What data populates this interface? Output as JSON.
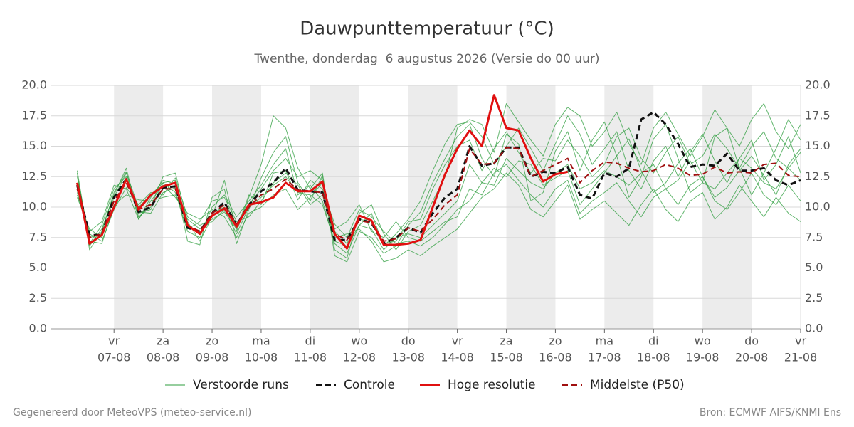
{
  "chart_data": {
    "type": "line",
    "title": "Dauwpunttemperatuur (°C)",
    "subtitle": "Twenthe, donderdag  6 augustus 2026 (Versie do 00 uur)",
    "footer_left": "Gegenereerd door MeteoVPS (meteo-service.nl)",
    "footer_right": "Bron: ECMWF AIFS/KNMI Ens",
    "xlim": [
      5.72,
      21
    ],
    "ylim": [
      0,
      20
    ],
    "yticks": [
      {
        "value": 0,
        "label": "0.0"
      },
      {
        "value": 2.5,
        "label": "2.5"
      },
      {
        "value": 5,
        "label": "5.0"
      },
      {
        "value": 7.5,
        "label": "7.5"
      },
      {
        "value": 10,
        "label": "10.0"
      },
      {
        "value": 12.5,
        "label": "12.5"
      },
      {
        "value": 15,
        "label": "15.0"
      },
      {
        "value": 17.5,
        "label": "17.5"
      },
      {
        "value": 20,
        "label": "20.0"
      }
    ],
    "xticks": [
      {
        "value": 7,
        "label": "07-08",
        "weekday": "vr"
      },
      {
        "value": 8,
        "label": "08-08",
        "weekday": "za"
      },
      {
        "value": 9,
        "label": "09-08",
        "weekday": "zo"
      },
      {
        "value": 10,
        "label": "10-08",
        "weekday": "ma"
      },
      {
        "value": 11,
        "label": "11-08",
        "weekday": "di"
      },
      {
        "value": 12,
        "label": "12-08",
        "weekday": "wo"
      },
      {
        "value": 13,
        "label": "13-08",
        "weekday": "do"
      },
      {
        "value": 14,
        "label": "14-08",
        "weekday": "vr"
      },
      {
        "value": 15,
        "label": "15-08",
        "weekday": "za"
      },
      {
        "value": 16,
        "label": "16-08",
        "weekday": "zo"
      },
      {
        "value": 17,
        "label": "17-08",
        "weekday": "ma"
      },
      {
        "value": 18,
        "label": "18-08",
        "weekday": "di"
      },
      {
        "value": 19,
        "label": "19-08",
        "weekday": "wo"
      },
      {
        "value": 20,
        "label": "20-08",
        "weekday": "do"
      },
      {
        "value": 21,
        "label": "21-08",
        "weekday": "vr"
      }
    ],
    "grid": true,
    "legend": "bottom",
    "x": [
      6.25,
      6.5,
      6.75,
      7,
      7.25,
      7.5,
      7.75,
      8,
      8.25,
      8.5,
      8.75,
      9,
      9.25,
      9.5,
      9.75,
      10,
      10.25,
      10.5,
      10.75,
      11,
      11.25,
      11.5,
      11.75,
      12,
      12.25,
      12.5,
      12.75,
      13,
      13.25,
      13.5,
      13.75,
      14,
      14.25,
      14.5,
      14.75,
      15,
      15.25,
      15.5,
      15.75,
      16,
      16.25,
      16.5,
      16.75,
      17,
      17.25,
      17.5,
      17.75,
      18,
      18.25,
      18.5,
      18.75,
      19,
      19.25,
      19.5,
      19.75,
      20,
      20.25,
      20.5,
      20.75,
      21
    ],
    "ensemble": {
      "name": "Verstoorde runs",
      "color": "#2e9e3e",
      "members": [
        [
          12.8,
          6.5,
          8.0,
          11.2,
          12.9,
          9.0,
          10.8,
          12.2,
          11.9,
          7.2,
          6.9,
          10.8,
          11.5,
          7.0,
          9.8,
          12.4,
          14.5,
          15.8,
          12.0,
          10.5,
          12.6,
          6.0,
          5.5,
          8.0,
          7.5,
          6.2,
          6.8,
          8.5,
          9.6,
          12.0,
          14.0,
          15.8,
          16.8,
          14.0,
          12.5,
          16.0,
          15.2,
          10.5,
          11.2,
          14.6,
          16.2,
          13.0,
          15.5,
          17.0,
          14.2,
          10.8,
          12.5,
          15.6,
          16.8,
          14.0,
          11.2,
          12.0,
          15.8,
          16.5,
          13.2,
          11.0,
          12.8,
          14.8,
          17.2,
          15.5
        ],
        [
          11.2,
          7.8,
          7.2,
          9.8,
          11.6,
          10.2,
          11.2,
          11.0,
          12.4,
          9.2,
          8.5,
          9.0,
          9.6,
          8.2,
          11.0,
          10.2,
          12.8,
          13.0,
          10.6,
          12.2,
          11.5,
          8.6,
          7.5,
          9.8,
          9.2,
          8.0,
          7.0,
          7.2,
          6.8,
          7.5,
          8.6,
          9.8,
          10.5,
          12.0,
          13.2,
          12.5,
          13.8,
          13.5,
          11.8,
          12.4,
          13.0,
          10.2,
          11.5,
          12.8,
          14.2,
          15.6,
          13.0,
          11.2,
          12.0,
          13.6,
          14.8,
          12.5,
          10.8,
          11.6,
          13.0,
          14.2,
          12.6,
          11.0,
          13.5,
          14.8
        ],
        [
          12.0,
          7.0,
          8.5,
          11.5,
          12.5,
          9.5,
          9.8,
          12.0,
          11.2,
          8.0,
          7.5,
          10.0,
          11.0,
          9.2,
          10.5,
          11.8,
          13.5,
          14.8,
          11.0,
          11.8,
          10.5,
          7.0,
          6.2,
          8.5,
          9.5,
          6.8,
          7.8,
          9.0,
          10.5,
          13.0,
          15.2,
          16.8,
          17.0,
          15.8,
          13.5,
          15.0,
          16.5,
          14.8,
          13.0,
          15.2,
          17.5,
          16.0,
          13.5,
          14.8,
          16.2,
          13.0,
          11.5,
          13.8,
          15.0,
          12.5,
          14.5,
          16.0,
          13.8,
          12.0,
          14.0,
          15.5,
          12.2,
          13.5,
          15.8,
          12.8
        ],
        [
          10.8,
          8.2,
          7.5,
          10.2,
          11.0,
          10.6,
          10.5,
          11.8,
          10.8,
          9.5,
          9.0,
          9.8,
          9.2,
          7.5,
          9.5,
          10.0,
          11.0,
          11.5,
          9.8,
          10.8,
          12.0,
          8.2,
          8.8,
          10.2,
          8.0,
          7.5,
          8.8,
          7.5,
          7.2,
          8.0,
          8.8,
          9.2,
          11.5,
          11.0,
          12.8,
          13.5,
          12.2,
          11.0,
          10.0,
          11.5,
          12.2,
          9.5,
          10.5,
          11.2,
          12.0,
          10.5,
          9.2,
          10.8,
          11.5,
          10.2,
          11.8,
          12.5,
          10.5,
          9.8,
          11.2,
          12.8,
          11.0,
          10.2,
          11.8,
          10.5
        ],
        [
          13.0,
          6.8,
          8.2,
          11.0,
          13.2,
          9.2,
          10.0,
          12.5,
          12.8,
          8.8,
          7.2,
          9.2,
          12.2,
          8.0,
          10.8,
          13.5,
          17.5,
          16.5,
          13.2,
          11.5,
          12.8,
          6.5,
          5.8,
          9.5,
          10.2,
          7.8,
          6.5,
          8.0,
          8.5,
          10.5,
          12.5,
          16.5,
          17.2,
          16.8,
          14.5,
          18.5,
          17.0,
          15.5,
          14.2,
          16.8,
          18.2,
          17.5,
          15.0,
          16.2,
          17.8,
          15.2,
          13.5,
          16.5,
          17.8,
          16.0,
          14.2,
          15.8,
          18.0,
          16.5,
          15.0,
          17.2,
          18.5,
          16.2,
          14.8,
          16.8
        ],
        [
          11.8,
          7.2,
          7.0,
          10.0,
          12.2,
          9.6,
          9.5,
          11.2,
          11.6,
          8.2,
          8.8,
          10.5,
          10.8,
          8.8,
          9.2,
          10.5,
          12.0,
          12.8,
          11.8,
          10.2,
          11.0,
          7.5,
          7.8,
          8.2,
          7.2,
          5.5,
          5.8,
          6.5,
          6.0,
          6.8,
          7.5,
          8.2,
          9.5,
          10.8,
          11.5,
          12.8,
          11.8,
          9.8,
          9.2,
          10.5,
          11.8,
          9.0,
          9.8,
          10.5,
          9.5,
          8.5,
          10.2,
          11.5,
          9.8,
          8.8,
          10.5,
          11.2,
          9.0,
          10.0,
          11.8,
          10.5,
          9.2,
          10.8,
          9.5,
          8.8
        ],
        [
          12.5,
          7.5,
          7.8,
          10.8,
          12.8,
          10.0,
          11.0,
          12.0,
          12.2,
          8.6,
          7.8,
          9.5,
          10.0,
          8.4,
          10.2,
          11.5,
          13.0,
          14.0,
          12.5,
          13.0,
          12.2,
          8.0,
          7.0,
          9.0,
          8.8,
          7.0,
          7.2,
          8.8,
          9.0,
          11.5,
          13.5,
          15.0,
          15.5,
          13.0,
          14.8,
          16.2,
          14.5,
          12.8,
          14.0,
          13.8,
          15.5,
          14.2,
          12.5,
          13.5,
          15.8,
          16.5,
          14.0,
          12.8,
          14.5,
          15.8,
          13.5,
          14.2,
          16.0,
          14.8,
          13.2,
          15.0,
          16.2,
          14.0,
          13.2,
          14.5
        ],
        [
          11.0,
          8.0,
          8.8,
          11.8,
          11.5,
          9.0,
          10.5,
          10.8,
          11.0,
          9.0,
          8.2,
          8.8,
          9.8,
          7.8,
          10.0,
          10.8,
          11.8,
          12.5,
          11.2,
          11.0,
          10.2,
          7.2,
          6.8,
          8.5,
          8.2,
          6.5,
          7.5,
          7.8,
          7.5,
          8.5,
          9.5,
          10.5,
          13.5,
          12.0,
          11.8,
          14.0,
          13.0,
          12.0,
          11.5,
          12.8,
          13.5,
          11.5,
          12.0,
          13.0,
          12.5,
          11.8,
          12.8,
          13.5,
          11.5,
          12.2,
          13.8,
          12.0,
          11.5,
          12.8,
          14.0,
          13.2,
          12.0,
          11.5,
          13.2,
          12.2
        ]
      ]
    },
    "series": [
      {
        "name": "Controle",
        "color": "#111111",
        "dash": true,
        "width": 3,
        "values": [
          11.8,
          7.7,
          7.7,
          10.8,
          12.3,
          9.6,
          10.0,
          11.6,
          11.7,
          8.3,
          8.0,
          9.5,
          10.4,
          8.5,
          10.2,
          11.3,
          12.0,
          13.2,
          11.4,
          11.3,
          11.2,
          7.3,
          7.3,
          9.0,
          8.7,
          7.0,
          7.5,
          8.3,
          7.9,
          9.5,
          10.8,
          11.5,
          15.0,
          13.4,
          13.6,
          14.9,
          14.9,
          12.5,
          12.9,
          12.8,
          13.3,
          11.0,
          10.7,
          12.8,
          12.5,
          13.2,
          17.2,
          17.8,
          16.8,
          15.2,
          13.3,
          13.5,
          13.4,
          14.4,
          13.0,
          13.0,
          13.2,
          12.2,
          11.8,
          12.2
        ]
      },
      {
        "name": "Hoge resolutie",
        "color": "#e01010",
        "dash": false,
        "width": 3,
        "values": [
          12.0,
          7.0,
          7.7,
          10.0,
          12.3,
          9.8,
          11.0,
          11.7,
          12.0,
          8.5,
          7.8,
          9.3,
          9.9,
          8.4,
          10.2,
          10.4,
          10.8,
          12.0,
          11.3,
          11.3,
          12.1,
          7.8,
          6.6,
          9.3,
          8.9,
          6.9,
          6.9,
          7.0,
          7.3,
          10.0,
          12.7,
          14.8,
          16.3,
          15.0,
          19.2,
          16.5,
          16.3,
          14.0,
          12.1,
          12.7,
          12.9,
          null,
          null,
          null,
          null,
          null,
          null,
          null,
          null,
          null,
          null,
          null,
          null,
          null,
          null,
          null,
          null,
          null,
          null,
          null
        ]
      },
      {
        "name": "Middelste (P50)",
        "color": "#a01010",
        "dash": true,
        "width": 2,
        "values": [
          11.5,
          7.5,
          7.8,
          10.5,
          12.0,
          9.8,
          10.2,
          11.5,
          11.5,
          8.5,
          8.0,
          9.5,
          10.2,
          8.6,
          10.0,
          11.0,
          11.5,
          12.3,
          11.4,
          11.3,
          11.2,
          7.8,
          7.3,
          8.9,
          8.7,
          7.2,
          7.4,
          8.3,
          8.0,
          9.0,
          10.2,
          11.0,
          14.8,
          13.5,
          13.6,
          14.9,
          14.8,
          12.5,
          13.0,
          13.5,
          14.0,
          12.0,
          13.0,
          13.7,
          13.6,
          13.2,
          12.9,
          13.0,
          13.5,
          13.2,
          12.6,
          12.7,
          13.3,
          12.8,
          12.9,
          12.8,
          13.5,
          13.6,
          12.6,
          12.5
        ]
      }
    ]
  }
}
